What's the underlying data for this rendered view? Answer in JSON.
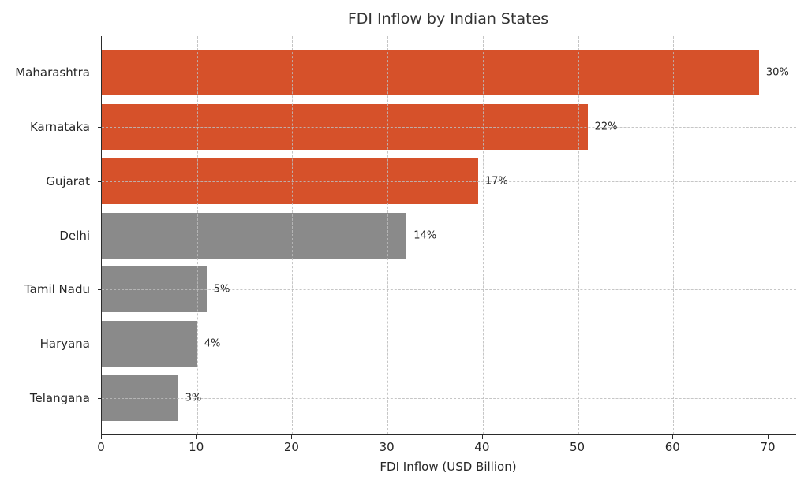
{
  "figure": {
    "title": "FDI Inflow by Indian States",
    "xlabel": "FDI Inflow (USD Billion)"
  },
  "chart_data": {
    "type": "bar",
    "orientation": "horizontal",
    "title": "FDI Inflow by Indian States",
    "xlabel": "FDI Inflow (USD Billion)",
    "ylabel": "",
    "categories": [
      "Maharashtra",
      "Karnataka",
      "Gujarat",
      "Delhi",
      "Tamil Nadu",
      "Haryana",
      "Telangana"
    ],
    "values": [
      69,
      51,
      39.5,
      32,
      11,
      10,
      8
    ],
    "bar_labels": [
      "30%",
      "22%",
      "17%",
      "14%",
      "5%",
      "4%",
      "3%"
    ],
    "bar_colors": [
      "#d6512a",
      "#d6512a",
      "#d6512a",
      "#8a8a8a",
      "#8a8a8a",
      "#8a8a8a",
      "#8a8a8a"
    ],
    "highlight_color": "#d6512a",
    "muted_color": "#8a8a8a",
    "xlim": [
      0,
      72.9
    ],
    "xticks": [
      0,
      10,
      20,
      30,
      40,
      50,
      60,
      70
    ],
    "grid": "both, dashed, drawn over bars",
    "legend": "none"
  }
}
